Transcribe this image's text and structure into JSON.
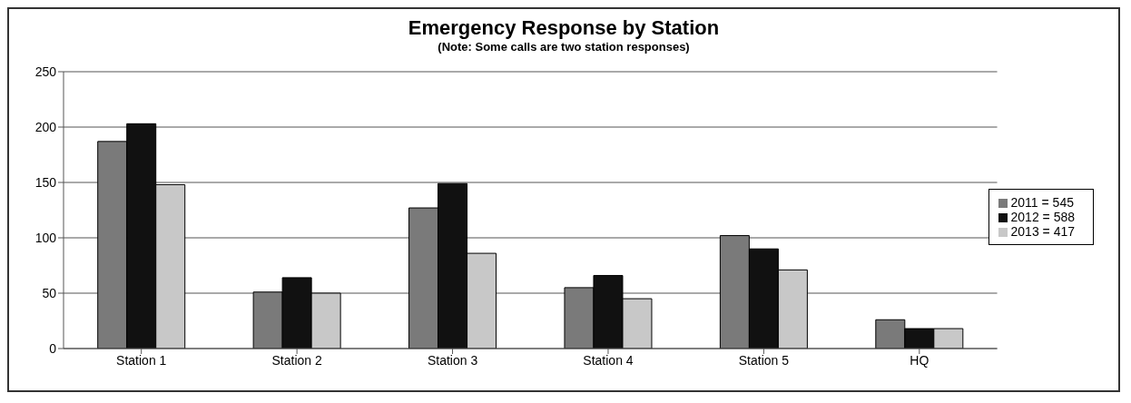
{
  "chart_data": {
    "type": "bar",
    "title": "Emergency Response by Station",
    "subtitle": "(Note: Some calls are two station responses)",
    "categories": [
      "Station 1",
      "Station 2",
      "Station 3",
      "Station 4",
      "Station 5",
      "HQ"
    ],
    "series": [
      {
        "name": "2011 = 545",
        "color": "#7a7a7a",
        "values": [
          187,
          51,
          127,
          55,
          102,
          26
        ]
      },
      {
        "name": "2012 = 588",
        "color": "#111111",
        "values": [
          203,
          64,
          149,
          66,
          90,
          18
        ]
      },
      {
        "name": "2013 = 417",
        "color": "#c8c8c8",
        "values": [
          148,
          50,
          86,
          45,
          71,
          18
        ]
      }
    ],
    "ylim": [
      0,
      250
    ],
    "yticks": [
      0,
      50,
      100,
      150,
      200,
      250
    ],
    "grid": "y",
    "legend": "right"
  }
}
